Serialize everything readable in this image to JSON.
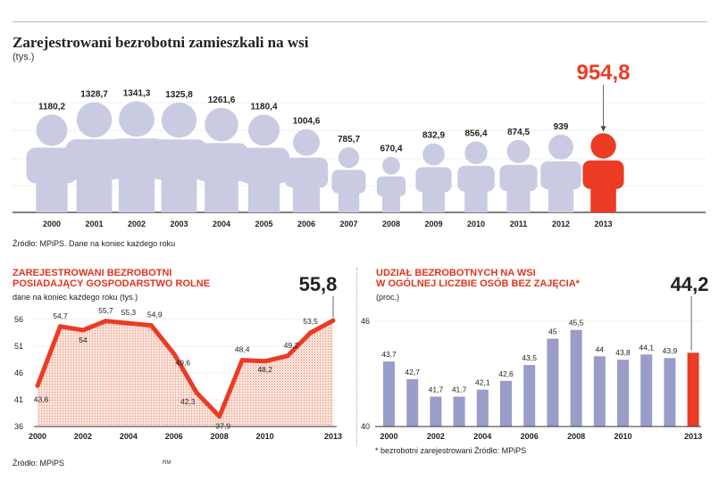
{
  "header": {
    "title": "Zarejestrowani bezrobotni zamieszkali na wsi",
    "unit": "(tys.)",
    "source": "Źródło: MPiPS. Dane na koniec każdego roku"
  },
  "left_panel": {
    "title_line1": "ZAREJESTROWANI BEZROBOTNI",
    "title_line2": "POSIADAJĄCY GOSPODARSTWO ROLNE",
    "subtitle": "dane na koniec każdego roku (tys.)"
  },
  "right_panel": {
    "title_line1": "UDZIAŁ BEZROBOTNYCH NA WSI",
    "title_line2": "W OGÓLNEJ LICZBIE OSÓB BEZ ZAJĘCIA*",
    "subtitle": "(proc.)",
    "footnote": "* bezrobotni zarejestrowani   Źródło: MPiPS"
  },
  "footer": {
    "source": "Źródło: MPiPS",
    "credit": "RM"
  },
  "colors": {
    "figure": "#c9cbe2",
    "highlight": "#ec3b25",
    "bar": "#9a9cc9",
    "line": "#ec3b25",
    "fill": "#f7c7b9"
  },
  "chart_data": [
    {
      "type": "bar",
      "title": "Zarejestrowani bezrobotni zamieszkali na wsi",
      "ylabel": "(tys.)",
      "categories": [
        "2000",
        "2001",
        "2002",
        "2003",
        "2004",
        "2005",
        "2006",
        "2007",
        "2008",
        "2009",
        "2010",
        "2011",
        "2012",
        "2013"
      ],
      "values": [
        1180.2,
        1328.7,
        1341.3,
        1325.8,
        1261.6,
        1180.4,
        1004.6,
        785.7,
        670.4,
        832.9,
        856.4,
        874.5,
        939,
        954.8
      ],
      "labels": [
        "1180,2",
        "1328,7",
        "1341,3",
        "1325,8",
        "1261,6",
        "1180,4",
        "1004,6",
        "785,7",
        "670,4",
        "832,9",
        "856,4",
        "874,5",
        "939",
        "954,8"
      ],
      "highlight_index": 13,
      "ylim": [
        0,
        1400
      ],
      "grid": true
    },
    {
      "type": "area",
      "title": "ZAREJESTROWANI BEZROBOTNI POSIADAJĄCY GOSPODARSTWO ROLNE",
      "ylabel": "dane na koniec każdego roku (tys.)",
      "x": [
        2000,
        2001,
        2002,
        2003,
        2004,
        2005,
        2006,
        2007,
        2008,
        2009,
        2010,
        2011,
        2012,
        2013
      ],
      "values": [
        43.6,
        54.7,
        54,
        55.7,
        55.3,
        54.9,
        49.6,
        42.3,
        37.9,
        48.4,
        48.2,
        49.2,
        53.5,
        55.8
      ],
      "labels": [
        "43,6",
        "54,7",
        "54",
        "55,7",
        "55,3",
        "54,9",
        "49,6",
        "42,3",
        "37,9",
        "48,4",
        "48,2",
        "49,2",
        "53,5",
        "55,8"
      ],
      "xticks": [
        "2000",
        "2002",
        "2004",
        "2006",
        "2008",
        "2010",
        "2013"
      ],
      "xtick_values": [
        2000,
        2002,
        2004,
        2006,
        2008,
        2010,
        2013
      ],
      "yticks": [
        "36",
        "41",
        "46",
        "51",
        "56"
      ],
      "ytick_values": [
        36,
        41,
        46,
        51,
        56
      ],
      "ylim": [
        36,
        57
      ]
    },
    {
      "type": "bar",
      "title": "UDZIAŁ BEZROBOTNYCH NA WSI W OGÓLNEJ LICZBIE OSÓB BEZ ZAJĘCIA*",
      "ylabel": "(proc.)",
      "categories": [
        "2000",
        "2001",
        "2002",
        "2003",
        "2004",
        "2005",
        "2006",
        "2007",
        "2008",
        "2009",
        "2010",
        "2011",
        "2012",
        "2013"
      ],
      "values": [
        43.7,
        42.7,
        41.7,
        41.7,
        42.1,
        42.6,
        43.5,
        45,
        45.5,
        44,
        43.8,
        44.1,
        43.9,
        44.2
      ],
      "labels": [
        "43,7",
        "42,7",
        "41,7",
        "41,7",
        "42,1",
        "42,6",
        "43,5",
        "45",
        "45,5",
        "44",
        "43,8",
        "44,1",
        "43,9",
        "44,2"
      ],
      "xticks": [
        "2000",
        "2002",
        "2004",
        "2006",
        "2008",
        "2010",
        "2013"
      ],
      "xtick_indices": [
        0,
        2,
        4,
        6,
        8,
        10,
        13
      ],
      "yticks": [
        "40",
        "46"
      ],
      "ytick_values": [
        40,
        46
      ],
      "ylim": [
        40,
        46.4
      ],
      "highlight_index": 13
    }
  ]
}
